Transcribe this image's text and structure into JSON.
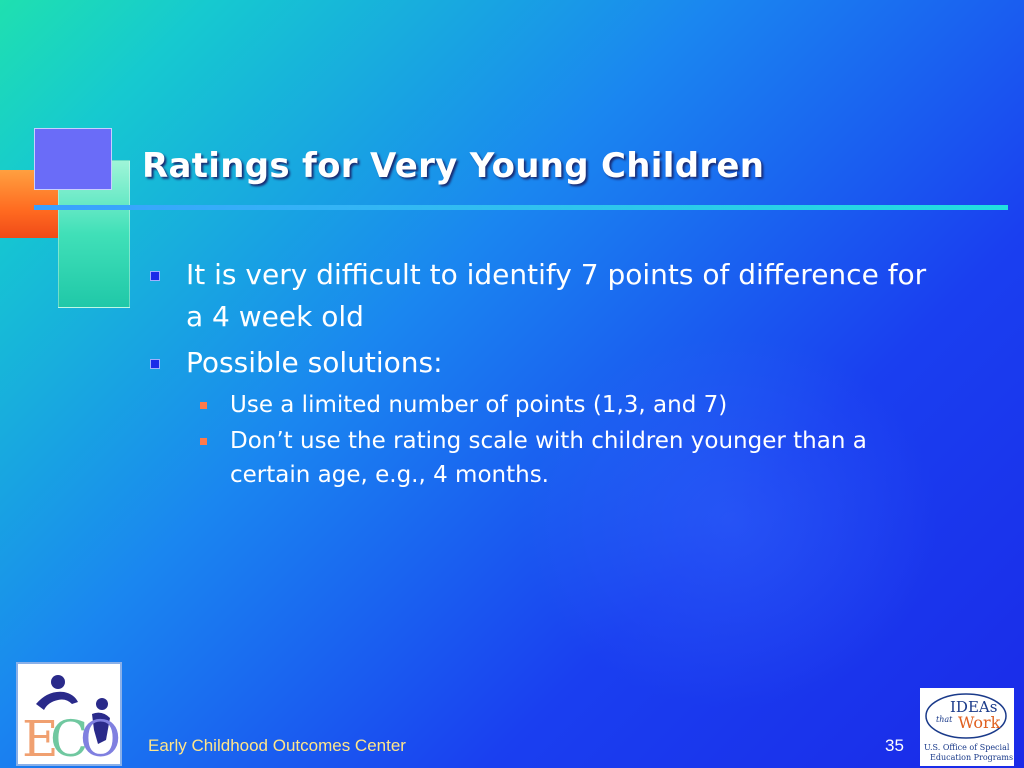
{
  "slide": {
    "title": "Ratings for Very Young Children",
    "bullets": [
      {
        "text": "It is very difficult to identify 7 points of difference for a 4 week old"
      },
      {
        "text": "Possible solutions:",
        "sub": [
          "Use a limited number of points (1,3, and 7)",
          "Don’t use the rating scale with children younger than a certain age, e.g., 4 months."
        ]
      }
    ]
  },
  "footer": {
    "org": "Early Childhood Outcomes Center",
    "page_number": "35"
  },
  "logos": {
    "left": {
      "letters": "ECO"
    },
    "right": {
      "line1": "IDEAs",
      "line2": "that",
      "line3": "Work",
      "line4": "U.S. Office of Special",
      "line5": "Education Programs"
    }
  },
  "colors": {
    "title_text": "#ffffff",
    "body_text": "#ffffff",
    "footer_text": "#ffe58a",
    "sub_bullet": "#ff7a4a"
  }
}
